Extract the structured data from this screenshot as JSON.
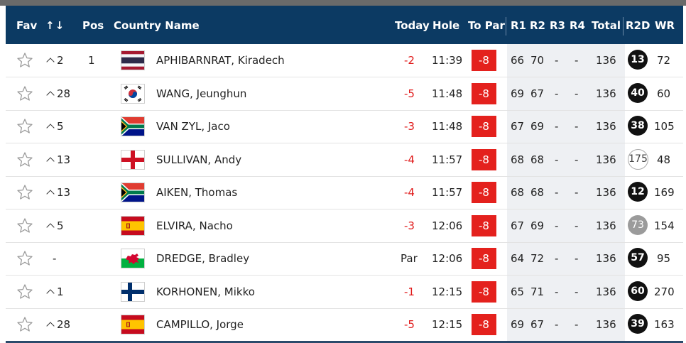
{
  "header": {
    "fav": "Fav",
    "sort_icon": "↑↓",
    "pos": "Pos",
    "country_name": "Country Name",
    "today": "Today",
    "hole": "Hole",
    "to_par": "To Par",
    "r1": "R1",
    "r2": "R2",
    "r3": "R3",
    "r4": "R4",
    "total": "Total",
    "r2d": "R2D",
    "wr": "WR"
  },
  "colors": {
    "header_bg": "#0c3a63",
    "to_par_bg": "#e4211d",
    "negative_text": "#e01919",
    "round_bg": "#eef0f3"
  },
  "rows": [
    {
      "move": "2",
      "move_dir": "up",
      "pos": "1",
      "flag": "thailand",
      "name": "APHIBARNRAT, Kiradech",
      "today": "-2",
      "today_neg": true,
      "hole": "11:39",
      "to_par": "-8",
      "r1": "66",
      "r2": "70",
      "r3": "-",
      "r4": "-",
      "total": "136",
      "r2d": "13",
      "r2d_style": "black",
      "wr": "72"
    },
    {
      "move": "28",
      "move_dir": "up",
      "pos": "",
      "flag": "south-korea",
      "name": "WANG, Jeunghun",
      "today": "-5",
      "today_neg": true,
      "hole": "11:48",
      "to_par": "-8",
      "r1": "69",
      "r2": "67",
      "r3": "-",
      "r4": "-",
      "total": "136",
      "r2d": "40",
      "r2d_style": "black",
      "wr": "60"
    },
    {
      "move": "5",
      "move_dir": "up",
      "pos": "",
      "flag": "south-africa",
      "name": "VAN ZYL, Jaco",
      "today": "-3",
      "today_neg": true,
      "hole": "11:48",
      "to_par": "-8",
      "r1": "67",
      "r2": "69",
      "r3": "-",
      "r4": "-",
      "total": "136",
      "r2d": "38",
      "r2d_style": "black",
      "wr": "105"
    },
    {
      "move": "13",
      "move_dir": "up",
      "pos": "",
      "flag": "england",
      "name": "SULLIVAN, Andy",
      "today": "-4",
      "today_neg": true,
      "hole": "11:57",
      "to_par": "-8",
      "r1": "68",
      "r2": "68",
      "r3": "-",
      "r4": "-",
      "total": "136",
      "r2d": "175",
      "r2d_style": "outline",
      "wr": "48"
    },
    {
      "move": "13",
      "move_dir": "up",
      "pos": "",
      "flag": "south-africa",
      "name": "AIKEN, Thomas",
      "today": "-4",
      "today_neg": true,
      "hole": "11:57",
      "to_par": "-8",
      "r1": "68",
      "r2": "68",
      "r3": "-",
      "r4": "-",
      "total": "136",
      "r2d": "12",
      "r2d_style": "black",
      "wr": "169"
    },
    {
      "move": "5",
      "move_dir": "up",
      "pos": "",
      "flag": "spain",
      "name": "ELVIRA, Nacho",
      "today": "-3",
      "today_neg": true,
      "hole": "12:06",
      "to_par": "-8",
      "r1": "67",
      "r2": "69",
      "r3": "-",
      "r4": "-",
      "total": "136",
      "r2d": "73",
      "r2d_style": "gray",
      "wr": "154"
    },
    {
      "move": "-",
      "move_dir": "none",
      "pos": "",
      "flag": "wales",
      "name": "DREDGE, Bradley",
      "today": "Par",
      "today_neg": false,
      "hole": "12:06",
      "to_par": "-8",
      "r1": "64",
      "r2": "72",
      "r3": "-",
      "r4": "-",
      "total": "136",
      "r2d": "57",
      "r2d_style": "black",
      "wr": "95"
    },
    {
      "move": "1",
      "move_dir": "up",
      "pos": "",
      "flag": "finland",
      "name": "KORHONEN, Mikko",
      "today": "-1",
      "today_neg": true,
      "hole": "12:15",
      "to_par": "-8",
      "r1": "65",
      "r2": "71",
      "r3": "-",
      "r4": "-",
      "total": "136",
      "r2d": "60",
      "r2d_style": "black",
      "wr": "270"
    },
    {
      "move": "28",
      "move_dir": "up",
      "pos": "",
      "flag": "spain",
      "name": "CAMPILLO, Jorge",
      "today": "-5",
      "today_neg": true,
      "hole": "12:15",
      "to_par": "-8",
      "r1": "69",
      "r2": "67",
      "r3": "-",
      "r4": "-",
      "total": "136",
      "r2d": "39",
      "r2d_style": "black",
      "wr": "163"
    }
  ]
}
